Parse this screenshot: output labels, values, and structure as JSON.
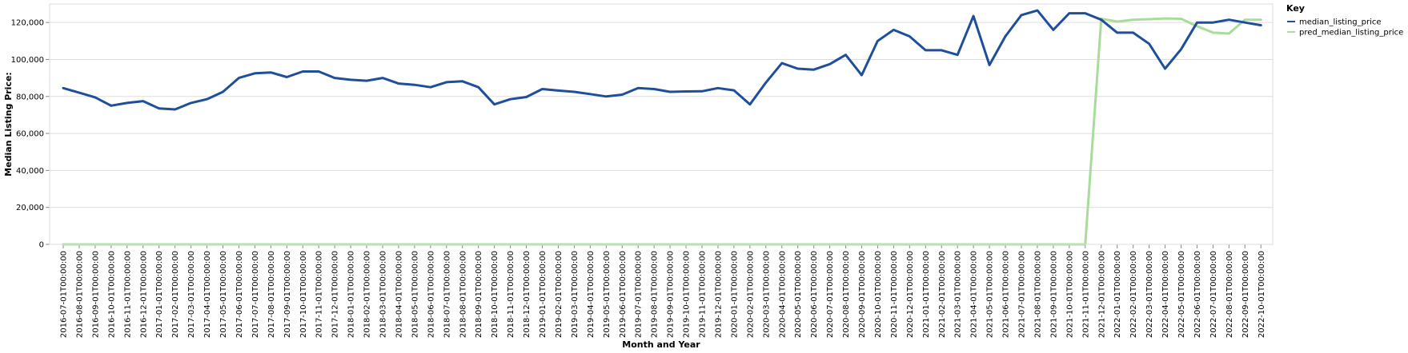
{
  "chart_data": {
    "type": "line",
    "xlabel": "Month and Year",
    "ylabel": "Median Listing Price:",
    "ylim": [
      0,
      130000
    ],
    "y_ticks": [
      0,
      20000,
      40000,
      60000,
      80000,
      100000,
      120000
    ],
    "y_tick_labels": [
      "0",
      "20,000",
      "40,000",
      "60,000",
      "80,000",
      "100,000",
      "120,000"
    ],
    "grid": true,
    "legend": {
      "title": "Key",
      "position": "top-right"
    },
    "x": [
      "2016-07-01T00:00:00",
      "2016-08-01T00:00:00",
      "2016-09-01T00:00:00",
      "2016-10-01T00:00:00",
      "2016-11-01T00:00:00",
      "2016-12-01T00:00:00",
      "2017-01-01T00:00:00",
      "2017-02-01T00:00:00",
      "2017-03-01T00:00:00",
      "2017-04-01T00:00:00",
      "2017-05-01T00:00:00",
      "2017-06-01T00:00:00",
      "2017-07-01T00:00:00",
      "2017-08-01T00:00:00",
      "2017-09-01T00:00:00",
      "2017-10-01T00:00:00",
      "2017-11-01T00:00:00",
      "2017-12-01T00:00:00",
      "2018-01-01T00:00:00",
      "2018-02-01T00:00:00",
      "2018-03-01T00:00:00",
      "2018-04-01T00:00:00",
      "2018-05-01T00:00:00",
      "2018-06-01T00:00:00",
      "2018-07-01T00:00:00",
      "2018-08-01T00:00:00",
      "2018-09-01T00:00:00",
      "2018-10-01T00:00:00",
      "2018-11-01T00:00:00",
      "2018-12-01T00:00:00",
      "2019-01-01T00:00:00",
      "2019-02-01T00:00:00",
      "2019-03-01T00:00:00",
      "2019-04-01T00:00:00",
      "2019-05-01T00:00:00",
      "2019-06-01T00:00:00",
      "2019-07-01T00:00:00",
      "2019-08-01T00:00:00",
      "2019-09-01T00:00:00",
      "2019-10-01T00:00:00",
      "2019-11-01T00:00:00",
      "2019-12-01T00:00:00",
      "2020-01-01T00:00:00",
      "2020-02-01T00:00:00",
      "2020-03-01T00:00:00",
      "2020-04-01T00:00:00",
      "2020-05-01T00:00:00",
      "2020-06-01T00:00:00",
      "2020-07-01T00:00:00",
      "2020-08-01T00:00:00",
      "2020-09-01T00:00:00",
      "2020-10-01T00:00:00",
      "2020-11-01T00:00:00",
      "2020-12-01T00:00:00",
      "2021-01-01T00:00:00",
      "2021-02-01T00:00:00",
      "2021-03-01T00:00:00",
      "2021-04-01T00:00:00",
      "2021-05-01T00:00:00",
      "2021-06-01T00:00:00",
      "2021-07-01T00:00:00",
      "2021-08-01T00:00:00",
      "2021-09-01T00:00:00",
      "2021-10-01T00:00:00",
      "2021-11-01T00:00:00",
      "2021-12-01T00:00:00",
      "2022-01-01T00:00:00",
      "2022-02-01T00:00:00",
      "2022-03-01T00:00:00",
      "2022-04-01T00:00:00",
      "2022-05-01T00:00:00",
      "2022-06-01T00:00:00",
      "2022-07-01T00:00:00",
      "2022-08-01T00:00:00",
      "2022-09-01T00:00:00",
      "2022-10-01T00:00:00"
    ],
    "series": [
      {
        "name": "median_listing_price",
        "color": "#1f4e9a",
        "values": [
          84500,
          82000,
          79500,
          75000,
          76500,
          77500,
          73500,
          73000,
          76500,
          78500,
          82500,
          90000,
          92500,
          93000,
          90500,
          93500,
          93500,
          90000,
          89000,
          88500,
          90000,
          87000,
          86300,
          85000,
          87700,
          88200,
          85000,
          75700,
          78500,
          79700,
          84000,
          83200,
          82500,
          81300,
          80000,
          81000,
          84500,
          84000,
          82500,
          82700,
          82800,
          84500,
          83300,
          75700,
          87500,
          98000,
          95000,
          94500,
          97500,
          102500,
          91500,
          110000,
          116000,
          112500,
          105000,
          105000,
          102500,
          123500,
          97000,
          112500,
          124000,
          126500,
          116000,
          125000,
          125000,
          121500,
          114500,
          114500,
          108500,
          95000,
          105500,
          120000,
          120000,
          121500,
          120000,
          118500
        ]
      },
      {
        "name": "pred_median_listing_price",
        "color": "#a8dc9b",
        "values": [
          0,
          0,
          0,
          0,
          0,
          0,
          0,
          0,
          0,
          0,
          0,
          0,
          0,
          0,
          0,
          0,
          0,
          0,
          0,
          0,
          0,
          0,
          0,
          0,
          0,
          0,
          0,
          0,
          0,
          0,
          0,
          0,
          0,
          0,
          0,
          0,
          0,
          0,
          0,
          0,
          0,
          0,
          0,
          0,
          0,
          0,
          0,
          0,
          0,
          0,
          0,
          0,
          0,
          0,
          0,
          0,
          0,
          0,
          0,
          0,
          0,
          0,
          0,
          0,
          0,
          122000,
          120500,
          121500,
          121800,
          122200,
          122000,
          118000,
          114500,
          114000,
          121500,
          121500
        ]
      }
    ]
  }
}
